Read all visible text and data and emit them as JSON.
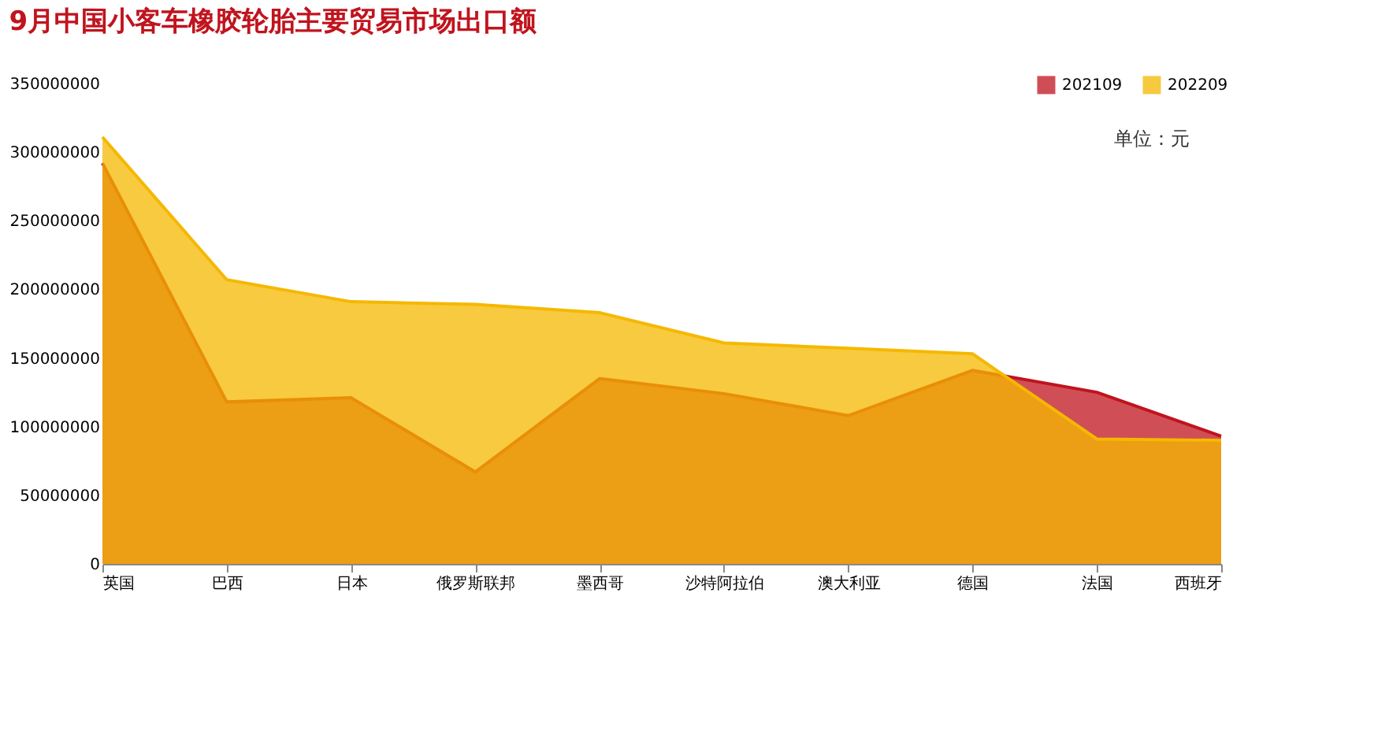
{
  "chart_data": {
    "type": "area",
    "title": "9月中国小客车橡胶轮胎主要贸易市场出口额",
    "categories": [
      "英国",
      "巴西",
      "日本",
      "俄罗斯联邦",
      "墨西哥",
      "沙特阿拉伯",
      "澳大利亚",
      "德国",
      "法国",
      "西班牙"
    ],
    "series": [
      {
        "name": "202109",
        "color": "#c0141e",
        "values": [
          292000000,
          118000000,
          121000000,
          67000000,
          135000000,
          124000000,
          108000000,
          141000000,
          125000000,
          93000000
        ]
      },
      {
        "name": "202209",
        "color": "#f5b800",
        "values": [
          311000000,
          207000000,
          191000000,
          189000000,
          183000000,
          161000000,
          157000000,
          153000000,
          91000000,
          90000000
        ]
      }
    ],
    "ylim": [
      0,
      350000000
    ],
    "yticks": [
      0,
      50000000,
      100000000,
      150000000,
      200000000,
      250000000,
      300000000,
      350000000
    ],
    "grid": false,
    "legend": "top right",
    "annotations": [
      "单位：元"
    ]
  }
}
